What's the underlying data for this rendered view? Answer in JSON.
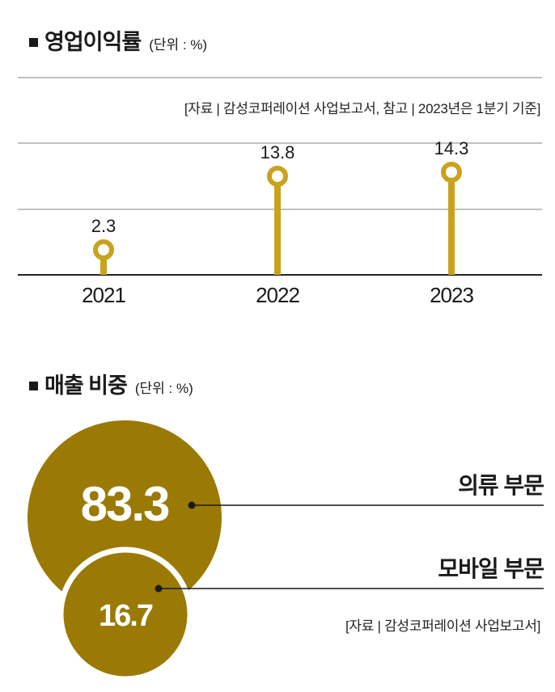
{
  "colors": {
    "gold": "#c9a21e",
    "gold_dark": "#9a7a05",
    "grid": "#9a9a9a",
    "axis": "#222222"
  },
  "top": {
    "title": "영업이익률",
    "unit": "(단위 : %)",
    "source": "[자료 | 감성코퍼레이션 사업보고서, 참고 | 2023년은 1분기 기준]"
  },
  "bottom": {
    "title": "매출 비중",
    "unit": "(단위 : %)",
    "source": "[자료 | 감성코퍼레이션 사업보고서]"
  },
  "chart_data": [
    {
      "type": "bar",
      "title": "영업이익률",
      "categories": [
        "2021",
        "2022",
        "2023"
      ],
      "values": [
        2.3,
        13.8,
        14.3
      ],
      "value_labels": [
        "2.3",
        "13.8",
        "14.3"
      ],
      "ylim": [
        0,
        16
      ],
      "grid": true
    },
    {
      "type": "pie",
      "title": "매출 비중",
      "categories": [
        "의류 부문",
        "모바일 부문"
      ],
      "values": [
        83.3,
        16.7
      ],
      "value_labels": [
        "83.3",
        "16.7"
      ]
    }
  ]
}
